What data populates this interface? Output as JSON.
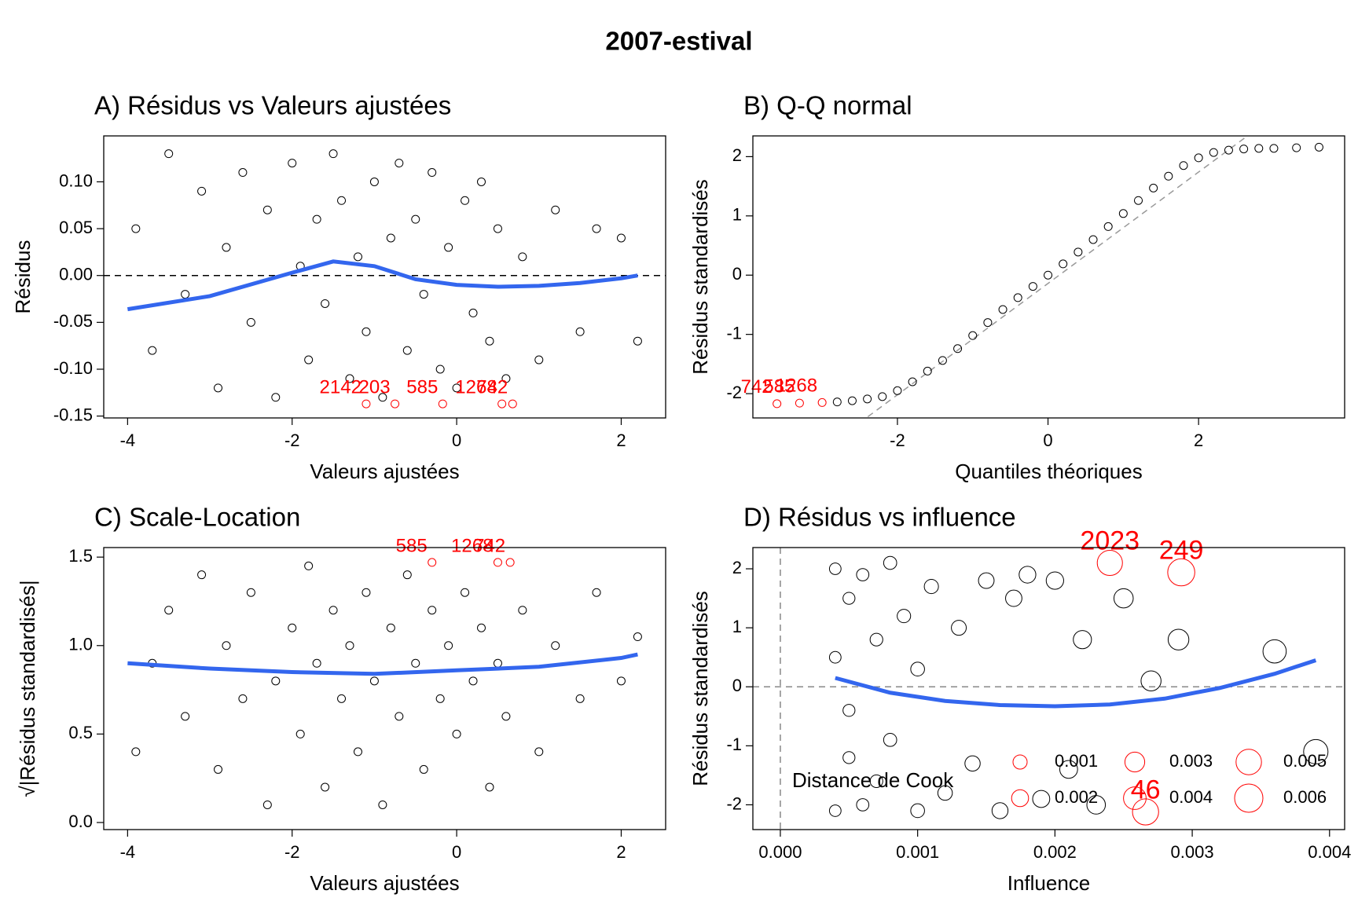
{
  "title": "2007-estival",
  "chart_data": [
    {
      "type": "scatter",
      "title": "A) Résidus vs Valeurs ajustées",
      "xlabel": "Valeurs ajustées",
      "ylabel": "Résidus",
      "xlim": [
        -4.29,
        2.54
      ],
      "ylim": [
        -0.152,
        0.149
      ],
      "xticks": [
        -4,
        -2,
        0,
        2
      ],
      "yticks": [
        {
          "value": 0.1,
          "label": "0.10"
        },
        0.05,
        {
          "value": 0,
          "label": "0.00"
        },
        -0.05,
        {
          "value": -0.1,
          "label": "-0.10"
        },
        -0.15
      ],
      "hline": 0,
      "points": {
        "x": [
          -3.9,
          -3.7,
          -3.5,
          -3.3,
          -3.1,
          -2.9,
          -2.8,
          -2.6,
          -2.5,
          -2.3,
          -2.2,
          -2.0,
          -1.9,
          -1.8,
          -1.7,
          -1.6,
          -1.5,
          -1.4,
          -1.3,
          -1.2,
          -1.1,
          -1.0,
          -0.9,
          -0.8,
          -0.7,
          -0.6,
          -0.5,
          -0.4,
          -0.3,
          -0.2,
          -0.1,
          0.0,
          0.1,
          0.2,
          0.3,
          0.4,
          0.5,
          0.6,
          0.8,
          1.0,
          1.2,
          1.5,
          1.7,
          2.0,
          2.2
        ],
        "y": [
          0.05,
          -0.08,
          0.13,
          -0.02,
          0.09,
          -0.12,
          0.03,
          0.11,
          -0.05,
          0.07,
          -0.13,
          0.12,
          0.01,
          -0.09,
          0.06,
          -0.03,
          0.13,
          0.08,
          -0.11,
          0.02,
          -0.06,
          0.1,
          -0.13,
          0.04,
          0.12,
          -0.08,
          0.06,
          -0.02,
          0.11,
          -0.1,
          0.03,
          -0.12,
          0.08,
          -0.04,
          0.1,
          -0.07,
          0.05,
          -0.11,
          0.02,
          -0.09,
          0.07,
          -0.06,
          0.05,
          0.04,
          -0.07
        ]
      },
      "smooth": {
        "color": "#3366ee",
        "x": [
          -4,
          -3,
          -2,
          -1.5,
          -1,
          -0.5,
          0,
          0.5,
          1,
          1.5,
          2,
          2.2
        ],
        "y": [
          -0.036,
          -0.022,
          0.003,
          0.015,
          0.01,
          -0.004,
          -0.01,
          -0.012,
          -0.011,
          -0.008,
          -0.003,
          0.0
        ]
      },
      "labeled_points": [
        {
          "label": "2142",
          "x": -1.1,
          "y": -0.137
        },
        {
          "label": "203",
          "x": -0.75,
          "y": -0.137
        },
        {
          "label": "585",
          "x": -0.17,
          "y": -0.137
        },
        {
          "label": "1268",
          "x": 0.55,
          "y": -0.137
        },
        {
          "label": "742",
          "x": 0.68,
          "y": -0.137
        }
      ]
    },
    {
      "type": "scatter",
      "title": "B) Q-Q normal",
      "xlabel": "Quantiles théoriques",
      "ylabel": "Résidus standardisés",
      "xlim": [
        -3.92,
        3.94
      ],
      "ylim": [
        -2.41,
        2.35
      ],
      "xticks": [
        -2,
        0,
        2
      ],
      "yticks": [
        2,
        1,
        0,
        -1,
        -2
      ],
      "reference_line": {
        "slope": 0.94,
        "intercept": -0.14
      },
      "points": {
        "x": [
          -2.8,
          -2.6,
          -2.4,
          -2.2,
          -2.0,
          -1.8,
          -1.6,
          -1.4,
          -1.2,
          -1.0,
          -0.8,
          -0.6,
          -0.4,
          -0.2,
          0,
          0.2,
          0.4,
          0.6,
          0.8,
          1.0,
          1.2,
          1.4,
          1.6,
          1.8,
          2.0,
          2.2,
          2.4,
          2.6,
          2.8,
          3.0,
          3.3,
          3.6
        ],
        "y": [
          -2.14,
          -2.12,
          -2.09,
          -2.05,
          -1.95,
          -1.8,
          -1.62,
          -1.44,
          -1.24,
          -1.02,
          -0.8,
          -0.58,
          -0.38,
          -0.19,
          0.0,
          0.19,
          0.39,
          0.6,
          0.82,
          1.04,
          1.26,
          1.47,
          1.67,
          1.85,
          1.98,
          2.07,
          2.11,
          2.13,
          2.14,
          2.14,
          2.15,
          2.16
        ]
      },
      "labeled_points": [
        {
          "label": "742",
          "x": -3.6,
          "y": -2.17
        },
        {
          "label": "585",
          "x": -3.3,
          "y": -2.16
        },
        {
          "label": "1268",
          "x": -3.0,
          "y": -2.15
        }
      ]
    },
    {
      "type": "scatter",
      "title": "C) Scale-Location",
      "xlabel": "Valeurs ajustées",
      "ylabel": "√|Résidus standardisés|",
      "xlim": [
        -4.29,
        2.54
      ],
      "ylim": [
        -0.04,
        1.554
      ],
      "xticks": [
        -4,
        -2,
        0,
        2
      ],
      "yticks": [
        1.5,
        {
          "value": 1,
          "label": "1.0"
        },
        0.5,
        {
          "value": 0,
          "label": "0.0"
        }
      ],
      "points": {
        "x": [
          -3.9,
          -3.7,
          -3.5,
          -3.3,
          -3.1,
          -2.9,
          -2.8,
          -2.6,
          -2.5,
          -2.3,
          -2.2,
          -2.0,
          -1.9,
          -1.8,
          -1.7,
          -1.6,
          -1.5,
          -1.4,
          -1.3,
          -1.2,
          -1.1,
          -1.0,
          -0.9,
          -0.8,
          -0.7,
          -0.6,
          -0.5,
          -0.4,
          -0.3,
          -0.2,
          -0.1,
          0.0,
          0.1,
          0.2,
          0.3,
          0.4,
          0.5,
          0.6,
          0.8,
          1.0,
          1.2,
          1.5,
          1.7,
          2.0,
          2.2
        ],
        "y": [
          0.4,
          0.9,
          1.2,
          0.6,
          1.4,
          0.3,
          1.0,
          0.7,
          1.3,
          0.1,
          0.8,
          1.1,
          0.5,
          1.45,
          0.9,
          0.2,
          1.2,
          0.7,
          1.0,
          0.4,
          1.3,
          0.8,
          0.1,
          1.1,
          0.6,
          1.4,
          0.9,
          0.3,
          1.2,
          0.7,
          1.0,
          0.5,
          1.3,
          0.8,
          1.1,
          0.2,
          0.9,
          0.6,
          1.2,
          0.4,
          1.0,
          0.7,
          1.3,
          0.8,
          1.05
        ]
      },
      "smooth": {
        "color": "#3366ee",
        "x": [
          -4,
          -3,
          -2,
          -1,
          0,
          1,
          2,
          2.2
        ],
        "y": [
          0.9,
          0.87,
          0.85,
          0.84,
          0.86,
          0.88,
          0.93,
          0.95
        ]
      },
      "labeled_points": [
        {
          "label": "585",
          "x": -0.3,
          "y": 1.47
        },
        {
          "label": "1268",
          "x": 0.5,
          "y": 1.47
        },
        {
          "label": "742",
          "x": 0.65,
          "y": 1.47
        }
      ]
    },
    {
      "type": "scatter",
      "title": "D) Résidus vs influence",
      "xlabel": "Influence",
      "ylabel": "Résidus standardisés",
      "xlim": [
        -0.0002,
        0.00411
      ],
      "ylim": [
        -2.42,
        2.36
      ],
      "xticks": [
        {
          "value": 0,
          "label": "0.000"
        },
        0.001,
        0.002,
        0.003,
        0.004
      ],
      "yticks": [
        2,
        1,
        0,
        -1,
        -2
      ],
      "hline": 0,
      "vline": 0,
      "points": {
        "x": [
          0.0004,
          0.0004,
          0.0004,
          0.0005,
          0.0005,
          0.0005,
          0.0006,
          0.0006,
          0.0007,
          0.0007,
          0.0008,
          0.0008,
          0.0009,
          0.001,
          0.001,
          0.0011,
          0.0012,
          0.0013,
          0.0014,
          0.0015,
          0.0016,
          0.0017,
          0.0018,
          0.0019,
          0.002,
          0.0021,
          0.0022,
          0.0023,
          0.0025,
          0.0027,
          0.0029,
          0.0036,
          0.0039
        ],
        "y": [
          2.0,
          -2.1,
          0.5,
          1.5,
          -1.2,
          -0.4,
          1.9,
          -2.0,
          0.8,
          -1.6,
          2.1,
          -0.9,
          1.2,
          -2.1,
          0.3,
          1.7,
          -1.8,
          1.0,
          -1.3,
          1.8,
          -2.1,
          1.5,
          1.9,
          -1.9,
          1.8,
          -1.4,
          0.8,
          -2.0,
          1.5,
          0.1,
          0.8,
          0.6,
          -1.1
        ]
      },
      "smooth": {
        "color": "#3366ee",
        "x": [
          0.0004,
          0.0008,
          0.0012,
          0.0016,
          0.002,
          0.0024,
          0.0028,
          0.0032,
          0.0036,
          0.0039
        ],
        "y": [
          0.15,
          -0.1,
          -0.24,
          -0.31,
          -0.33,
          -0.3,
          -0.2,
          -0.02,
          0.22,
          0.45
        ]
      },
      "labeled_points": [
        {
          "label": "2023",
          "x": 0.0024,
          "y": 2.1
        },
        {
          "label": "249",
          "x": 0.00292,
          "y": 1.94
        },
        {
          "label": "46",
          "x": 0.00266,
          "y": -2.12
        }
      ],
      "cook_legend": {
        "title": "Distance de Cook",
        "color": "#ff0000",
        "levels": [
          0.001,
          0.002,
          0.003,
          0.004,
          0.005,
          0.006
        ]
      }
    }
  ]
}
